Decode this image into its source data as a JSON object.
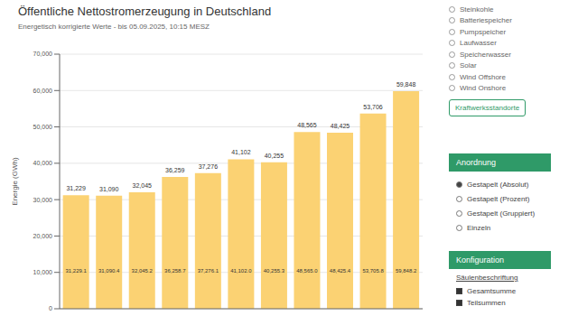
{
  "chart_data": {
    "type": "bar",
    "title": "Öffentliche Nettostromerzeugung in Deutschland",
    "subtitle": "Energetisch korrigierte Werte - bis 05.09.2025, 10:15 MESZ",
    "y_label": "Energie (GWh)",
    "categories": [
      null,
      null,
      null,
      null,
      null,
      null,
      null,
      null,
      null,
      null,
      null
    ],
    "values": [
      31229.1,
      31090.4,
      32045.2,
      36258.7,
      37276.1,
      41102.0,
      40255.3,
      48565.0,
      48425.4,
      53705.8,
      59848.2
    ],
    "value_labels": [
      "31,229.1",
      "31,090.4",
      "32,045.2",
      "36,258.7",
      "37,276.1",
      "41,102.0",
      "40,255.3",
      "48,565.0",
      "48,425.4",
      "53,705.8",
      "59,848.2"
    ],
    "total_labels": [
      "31,229",
      "31,090",
      "32,045",
      "36,259",
      "37,276",
      "41,102",
      "40,255",
      "48,565",
      "48,425",
      "53,706",
      "59,848"
    ],
    "color": "#fbd273",
    "ylim": [
      0,
      70000
    ],
    "yticks": [
      0,
      {
        "value": 10000,
        "label": "10,000"
      },
      {
        "value": 20000,
        "label": "20,000"
      },
      {
        "value": 30000,
        "label": "30,000"
      },
      {
        "value": 40000,
        "label": "40,000"
      },
      {
        "value": 50000,
        "label": "50,000"
      },
      {
        "value": 60000,
        "label": "60,000"
      },
      {
        "value": 70000,
        "label": "70,000"
      }
    ],
    "grid": true,
    "data_labels": true,
    "tick_labels": "y"
  },
  "sidebar": {
    "sources": [
      "Steinkohle",
      "Batteriespeicher",
      "Pumpspeicher",
      "Laufwasser",
      "Speicherwasser",
      "Solar",
      "Wind Offshore",
      "Wind Onshore"
    ],
    "button": "Kraftwerksstandorte",
    "arrangement": {
      "title": "Anordnung",
      "options": [
        "Gestapelt (Absolut)",
        "Gestapelt (Prozent)",
        "Gestapelt (Gruppiert)",
        "Einzeln"
      ],
      "selected": 0
    },
    "configuration": {
      "title": "Konfiguration",
      "subtitle": "Säulenbeschriftung",
      "checkboxes": [
        {
          "label": "Gesamtsumme",
          "checked": true
        },
        {
          "label": "Teilsummen",
          "checked": true
        }
      ]
    }
  }
}
